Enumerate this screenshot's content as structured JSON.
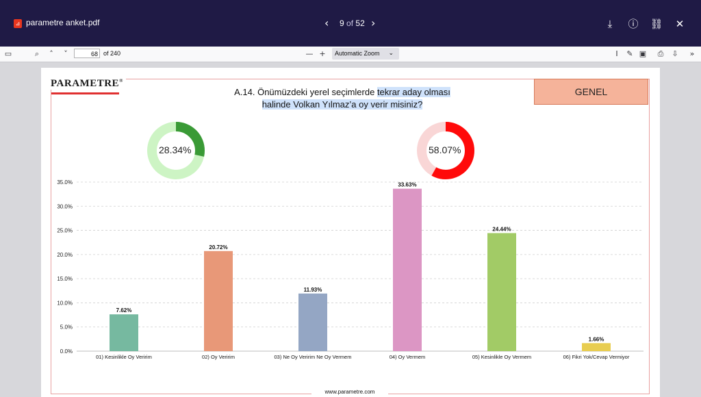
{
  "viewer": {
    "file_name": "parametre anket.pdf",
    "current_item": "9",
    "of_label": "of",
    "total_items": "52",
    "page_number": "68",
    "page_total_label": "of 240",
    "zoom_label": "Automatic Zoom"
  },
  "page": {
    "logo_text": "PARAMETRE",
    "logo_mark": "®",
    "question_plain": "A.14. Önümüzdeki yerel seçimlerde ",
    "question_hl1": "tekrar aday olması",
    "question_hl2": "halinde Volkan Yılmaz’a oy verir misiniz?",
    "badge": "GENEL",
    "footer": "www.parametre.com",
    "donuts": [
      {
        "label": "28.34%",
        "value": 28.34,
        "color": "#3a9a36",
        "track": "#cdf4c4"
      },
      {
        "label": "58.07%",
        "value": 58.07,
        "color": "#ff0a0a",
        "track": "#f9d6d6"
      }
    ]
  },
  "chart_data": {
    "type": "bar",
    "categories": [
      "01) Kesinlikle Oy Veririm",
      "02) Oy Veririm",
      "03) Ne Oy Veririm Ne Oy Vermem",
      "04) Oy Vermem",
      "05) Kesinlikle Oy Vermem",
      "06) Fikri Yok/Cevap Vermiyor"
    ],
    "values": [
      7.62,
      20.72,
      11.93,
      33.63,
      24.44,
      1.66
    ],
    "value_labels": [
      "7.62%",
      "20.72%",
      "11.93%",
      "33.63%",
      "24.44%",
      "1.66%"
    ],
    "colors": [
      "#76b9a0",
      "#e89878",
      "#94a6c4",
      "#dc96c4",
      "#a2cb66",
      "#e8cd50"
    ],
    "yticks": [
      "0.0%",
      "5.0%",
      "10.0%",
      "15.0%",
      "20.0%",
      "25.0%",
      "30.0%",
      "35.0%"
    ],
    "ylim": [
      0,
      35
    ],
    "grid": true
  }
}
